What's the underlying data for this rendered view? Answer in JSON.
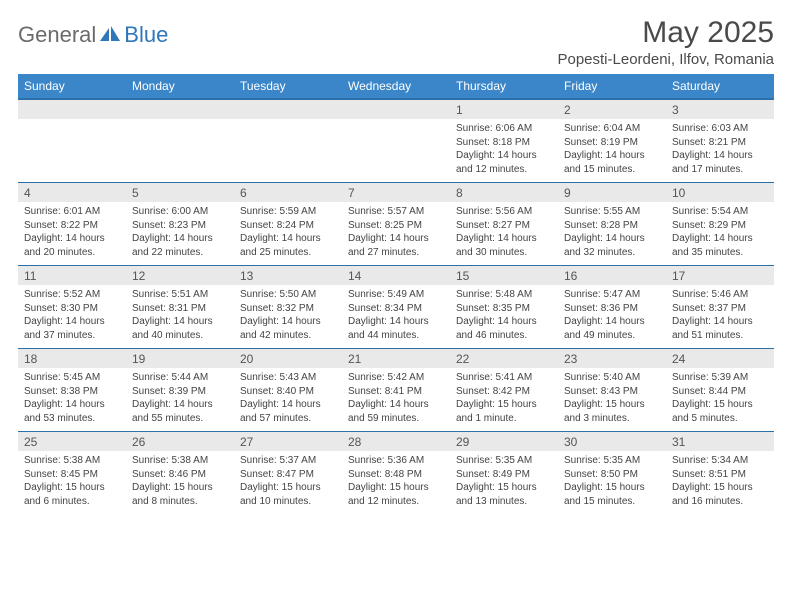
{
  "brand": {
    "word1": "General",
    "word2": "Blue"
  },
  "title": "May 2025",
  "location": "Popesti-Leordeni, Ilfov, Romania",
  "colors": {
    "header_bg": "#3a86c8",
    "header_text": "#ffffff",
    "num_bg": "#e9e9e9",
    "row_border": "#2f6fa8",
    "text": "#444444",
    "title_color": "#4a4a4a",
    "logo_gray": "#6b6b6b",
    "logo_blue": "#2f77b9"
  },
  "typography": {
    "title_fontsize": 30,
    "location_fontsize": 15,
    "dow_fontsize": 12,
    "daynum_fontsize": 12,
    "detail_fontsize": 10
  },
  "dow": [
    "Sunday",
    "Monday",
    "Tuesday",
    "Wednesday",
    "Thursday",
    "Friday",
    "Saturday"
  ],
  "weeks": [
    {
      "nums": [
        "",
        "",
        "",
        "",
        "1",
        "2",
        "3"
      ],
      "cells": [
        null,
        null,
        null,
        null,
        {
          "sunrise": "Sunrise: 6:06 AM",
          "sunset": "Sunset: 8:18 PM",
          "day1": "Daylight: 14 hours",
          "day2": "and 12 minutes."
        },
        {
          "sunrise": "Sunrise: 6:04 AM",
          "sunset": "Sunset: 8:19 PM",
          "day1": "Daylight: 14 hours",
          "day2": "and 15 minutes."
        },
        {
          "sunrise": "Sunrise: 6:03 AM",
          "sunset": "Sunset: 8:21 PM",
          "day1": "Daylight: 14 hours",
          "day2": "and 17 minutes."
        }
      ]
    },
    {
      "nums": [
        "4",
        "5",
        "6",
        "7",
        "8",
        "9",
        "10"
      ],
      "cells": [
        {
          "sunrise": "Sunrise: 6:01 AM",
          "sunset": "Sunset: 8:22 PM",
          "day1": "Daylight: 14 hours",
          "day2": "and 20 minutes."
        },
        {
          "sunrise": "Sunrise: 6:00 AM",
          "sunset": "Sunset: 8:23 PM",
          "day1": "Daylight: 14 hours",
          "day2": "and 22 minutes."
        },
        {
          "sunrise": "Sunrise: 5:59 AM",
          "sunset": "Sunset: 8:24 PM",
          "day1": "Daylight: 14 hours",
          "day2": "and 25 minutes."
        },
        {
          "sunrise": "Sunrise: 5:57 AM",
          "sunset": "Sunset: 8:25 PM",
          "day1": "Daylight: 14 hours",
          "day2": "and 27 minutes."
        },
        {
          "sunrise": "Sunrise: 5:56 AM",
          "sunset": "Sunset: 8:27 PM",
          "day1": "Daylight: 14 hours",
          "day2": "and 30 minutes."
        },
        {
          "sunrise": "Sunrise: 5:55 AM",
          "sunset": "Sunset: 8:28 PM",
          "day1": "Daylight: 14 hours",
          "day2": "and 32 minutes."
        },
        {
          "sunrise": "Sunrise: 5:54 AM",
          "sunset": "Sunset: 8:29 PM",
          "day1": "Daylight: 14 hours",
          "day2": "and 35 minutes."
        }
      ]
    },
    {
      "nums": [
        "11",
        "12",
        "13",
        "14",
        "15",
        "16",
        "17"
      ],
      "cells": [
        {
          "sunrise": "Sunrise: 5:52 AM",
          "sunset": "Sunset: 8:30 PM",
          "day1": "Daylight: 14 hours",
          "day2": "and 37 minutes."
        },
        {
          "sunrise": "Sunrise: 5:51 AM",
          "sunset": "Sunset: 8:31 PM",
          "day1": "Daylight: 14 hours",
          "day2": "and 40 minutes."
        },
        {
          "sunrise": "Sunrise: 5:50 AM",
          "sunset": "Sunset: 8:32 PM",
          "day1": "Daylight: 14 hours",
          "day2": "and 42 minutes."
        },
        {
          "sunrise": "Sunrise: 5:49 AM",
          "sunset": "Sunset: 8:34 PM",
          "day1": "Daylight: 14 hours",
          "day2": "and 44 minutes."
        },
        {
          "sunrise": "Sunrise: 5:48 AM",
          "sunset": "Sunset: 8:35 PM",
          "day1": "Daylight: 14 hours",
          "day2": "and 46 minutes."
        },
        {
          "sunrise": "Sunrise: 5:47 AM",
          "sunset": "Sunset: 8:36 PM",
          "day1": "Daylight: 14 hours",
          "day2": "and 49 minutes."
        },
        {
          "sunrise": "Sunrise: 5:46 AM",
          "sunset": "Sunset: 8:37 PM",
          "day1": "Daylight: 14 hours",
          "day2": "and 51 minutes."
        }
      ]
    },
    {
      "nums": [
        "18",
        "19",
        "20",
        "21",
        "22",
        "23",
        "24"
      ],
      "cells": [
        {
          "sunrise": "Sunrise: 5:45 AM",
          "sunset": "Sunset: 8:38 PM",
          "day1": "Daylight: 14 hours",
          "day2": "and 53 minutes."
        },
        {
          "sunrise": "Sunrise: 5:44 AM",
          "sunset": "Sunset: 8:39 PM",
          "day1": "Daylight: 14 hours",
          "day2": "and 55 minutes."
        },
        {
          "sunrise": "Sunrise: 5:43 AM",
          "sunset": "Sunset: 8:40 PM",
          "day1": "Daylight: 14 hours",
          "day2": "and 57 minutes."
        },
        {
          "sunrise": "Sunrise: 5:42 AM",
          "sunset": "Sunset: 8:41 PM",
          "day1": "Daylight: 14 hours",
          "day2": "and 59 minutes."
        },
        {
          "sunrise": "Sunrise: 5:41 AM",
          "sunset": "Sunset: 8:42 PM",
          "day1": "Daylight: 15 hours",
          "day2": "and 1 minute."
        },
        {
          "sunrise": "Sunrise: 5:40 AM",
          "sunset": "Sunset: 8:43 PM",
          "day1": "Daylight: 15 hours",
          "day2": "and 3 minutes."
        },
        {
          "sunrise": "Sunrise: 5:39 AM",
          "sunset": "Sunset: 8:44 PM",
          "day1": "Daylight: 15 hours",
          "day2": "and 5 minutes."
        }
      ]
    },
    {
      "nums": [
        "25",
        "26",
        "27",
        "28",
        "29",
        "30",
        "31"
      ],
      "cells": [
        {
          "sunrise": "Sunrise: 5:38 AM",
          "sunset": "Sunset: 8:45 PM",
          "day1": "Daylight: 15 hours",
          "day2": "and 6 minutes."
        },
        {
          "sunrise": "Sunrise: 5:38 AM",
          "sunset": "Sunset: 8:46 PM",
          "day1": "Daylight: 15 hours",
          "day2": "and 8 minutes."
        },
        {
          "sunrise": "Sunrise: 5:37 AM",
          "sunset": "Sunset: 8:47 PM",
          "day1": "Daylight: 15 hours",
          "day2": "and 10 minutes."
        },
        {
          "sunrise": "Sunrise: 5:36 AM",
          "sunset": "Sunset: 8:48 PM",
          "day1": "Daylight: 15 hours",
          "day2": "and 12 minutes."
        },
        {
          "sunrise": "Sunrise: 5:35 AM",
          "sunset": "Sunset: 8:49 PM",
          "day1": "Daylight: 15 hours",
          "day2": "and 13 minutes."
        },
        {
          "sunrise": "Sunrise: 5:35 AM",
          "sunset": "Sunset: 8:50 PM",
          "day1": "Daylight: 15 hours",
          "day2": "and 15 minutes."
        },
        {
          "sunrise": "Sunrise: 5:34 AM",
          "sunset": "Sunset: 8:51 PM",
          "day1": "Daylight: 15 hours",
          "day2": "and 16 minutes."
        }
      ]
    }
  ]
}
